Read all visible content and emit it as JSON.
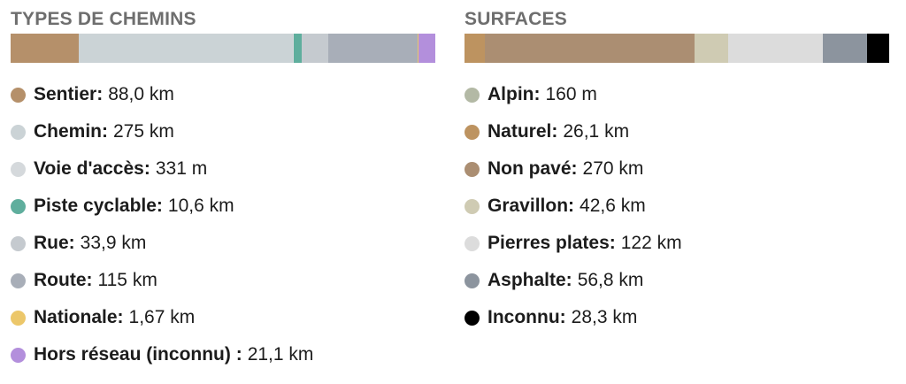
{
  "colors": {
    "sentier": "#b5906a",
    "chemin": "#cbd3d6",
    "voie_acces": "#d5d9dc",
    "piste_cyclable": "#5fae9d",
    "rue": "#c5cacf",
    "route": "#a8aeb8",
    "nationale": "#ecc76a",
    "hors_reseau": "#b38fdc",
    "alpin": "#b3b9a5",
    "naturel": "#bd9360",
    "non_pave": "#ab8e72",
    "gravillon": "#cfcbb3",
    "pierres_plates": "#dcdcdc",
    "asphalte": "#8c949e",
    "inconnu": "#000000"
  },
  "left": {
    "title": "TYPES DE CHEMINS",
    "items": [
      {
        "label": "Sentier:",
        "value": "88,0 km",
        "color": "#b5906a",
        "share": 0.1615
      },
      {
        "label": "Chemin:",
        "value": "275 km",
        "color": "#cbd3d6",
        "share": 0.5047
      },
      {
        "label": "Voie d'accès:",
        "value": "331 m",
        "color": "#d5d9dc",
        "share": 0.0006
      },
      {
        "label": "Piste cyclable:",
        "value": "10,6 km",
        "color": "#5fae9d",
        "share": 0.0195
      },
      {
        "label": "Rue:",
        "value": "33,9 km",
        "color": "#c5cacf",
        "share": 0.0622
      },
      {
        "label": "Route:",
        "value": "115 km",
        "color": "#a8aeb8",
        "share": 0.2111
      },
      {
        "label": "Nationale:",
        "value": "1,67 km",
        "color": "#ecc76a",
        "share": 0.0031
      },
      {
        "label": "Hors réseau (inconnu) :",
        "value": "21,1 km",
        "color": "#b38fdc",
        "share": 0.0387
      }
    ]
  },
  "right": {
    "title": "SURFACES",
    "items": [
      {
        "label": "Alpin:",
        "value": "160 m",
        "color": "#b3b9a5",
        "share": 0.0003
      },
      {
        "label": "Naturel:",
        "value": "26,1 km",
        "color": "#bd9360",
        "share": 0.0479
      },
      {
        "label": "Non pavé:",
        "value": "270 km",
        "color": "#ab8e72",
        "share": 0.4955
      },
      {
        "label": "Gravillon:",
        "value": "42,6 km",
        "color": "#cfcbb3",
        "share": 0.0782
      },
      {
        "label": "Pierres plates:",
        "value": "122 km",
        "color": "#dcdcdc",
        "share": 0.2239
      },
      {
        "label": "Asphalte:",
        "value": "56,8 km",
        "color": "#8c949e",
        "share": 0.1042
      },
      {
        "label": "Inconnu:",
        "value": "28,3 km",
        "color": "#000000",
        "share": 0.0519
      }
    ]
  }
}
